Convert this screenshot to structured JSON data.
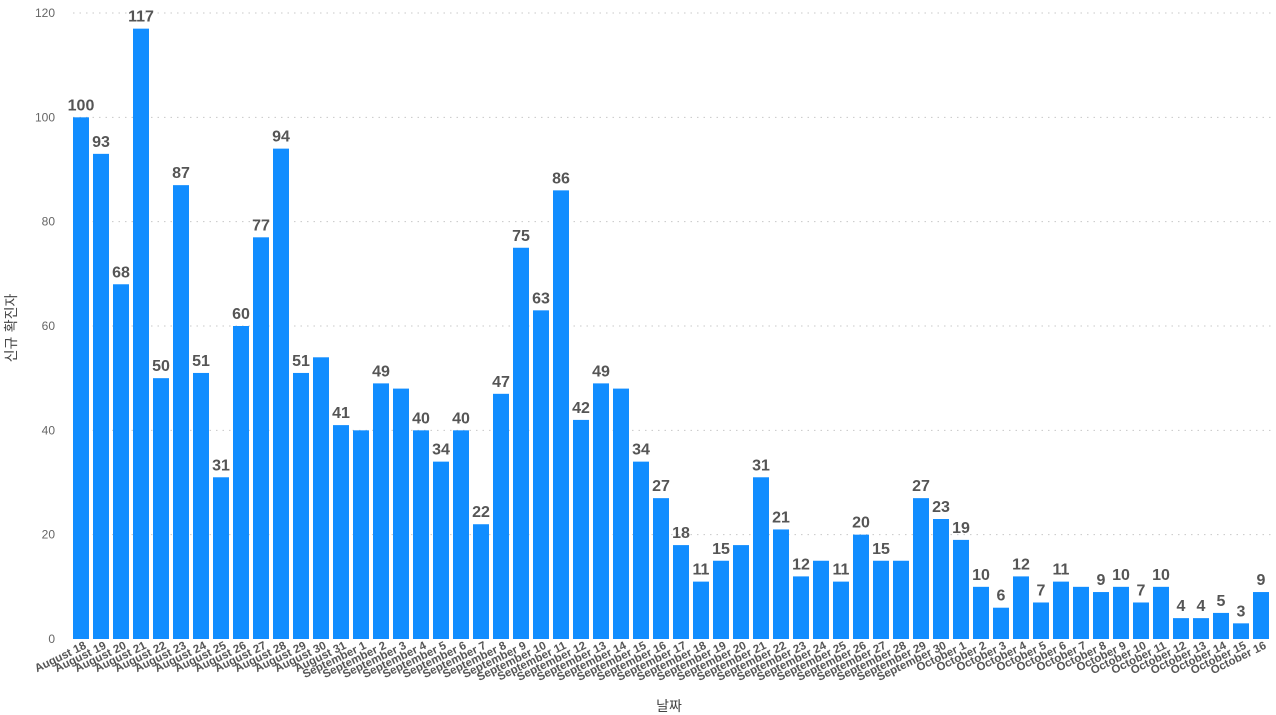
{
  "chart_data": {
    "type": "bar",
    "xlabel": "날짜",
    "ylabel": "신규 확진자",
    "ylim": [
      0,
      120
    ],
    "yticks": [
      0,
      20,
      40,
      60,
      80,
      100,
      120
    ],
    "grid": true,
    "bar_color": "#118dff",
    "categories": [
      "August 18",
      "August 19",
      "August 20",
      "August 21",
      "August 22",
      "August 23",
      "August 24",
      "August 25",
      "August 26",
      "August 27",
      "August 28",
      "August 29",
      "August 30",
      "August 31",
      "September 1",
      "September 2",
      "September 3",
      "September 4",
      "September 5",
      "September 6",
      "September 7",
      "September 8",
      "September 9",
      "September 10",
      "September 11",
      "September 12",
      "September 13",
      "September 14",
      "September 15",
      "September 16",
      "September 17",
      "September 18",
      "September 19",
      "September 20",
      "September 21",
      "September 22",
      "September 23",
      "September 24",
      "September 25",
      "September 26",
      "September 27",
      "September 28",
      "September 29",
      "September 30",
      "October 1",
      "October 2",
      "October 3",
      "October 4",
      "October 5",
      "October 6",
      "October 7",
      "October 8",
      "October 9",
      "October 10",
      "October 11",
      "October 12",
      "October 13",
      "October 14",
      "October 15",
      "October 16"
    ],
    "values": [
      100,
      93,
      68,
      117,
      50,
      87,
      51,
      31,
      60,
      77,
      94,
      51,
      54,
      41,
      40,
      49,
      48,
      40,
      34,
      40,
      22,
      47,
      75,
      63,
      86,
      42,
      49,
      48,
      34,
      27,
      18,
      11,
      15,
      18,
      31,
      21,
      12,
      15,
      11,
      20,
      15,
      15,
      27,
      23,
      19,
      10,
      6,
      12,
      7,
      11,
      10,
      9,
      10,
      7,
      10,
      4,
      4,
      5,
      3,
      9
    ],
    "data_labels": [
      "100",
      "93",
      "68",
      "117",
      "50",
      "87",
      "51",
      "31",
      "60",
      "77",
      "94",
      "51",
      "",
      "41",
      "",
      "49",
      "",
      "40",
      "34",
      "40",
      "22",
      "47",
      "75",
      "63",
      "86",
      "42",
      "49",
      "",
      "34",
      "27",
      "18",
      "11",
      "15",
      "",
      "31",
      "21",
      "12",
      "",
      "11",
      "20",
      "15",
      "",
      "27",
      "23",
      "19",
      "10",
      "6",
      "12",
      "7",
      "11",
      "",
      "9",
      "10",
      "7",
      "10",
      "4",
      "4",
      "5",
      "3",
      "9"
    ]
  }
}
